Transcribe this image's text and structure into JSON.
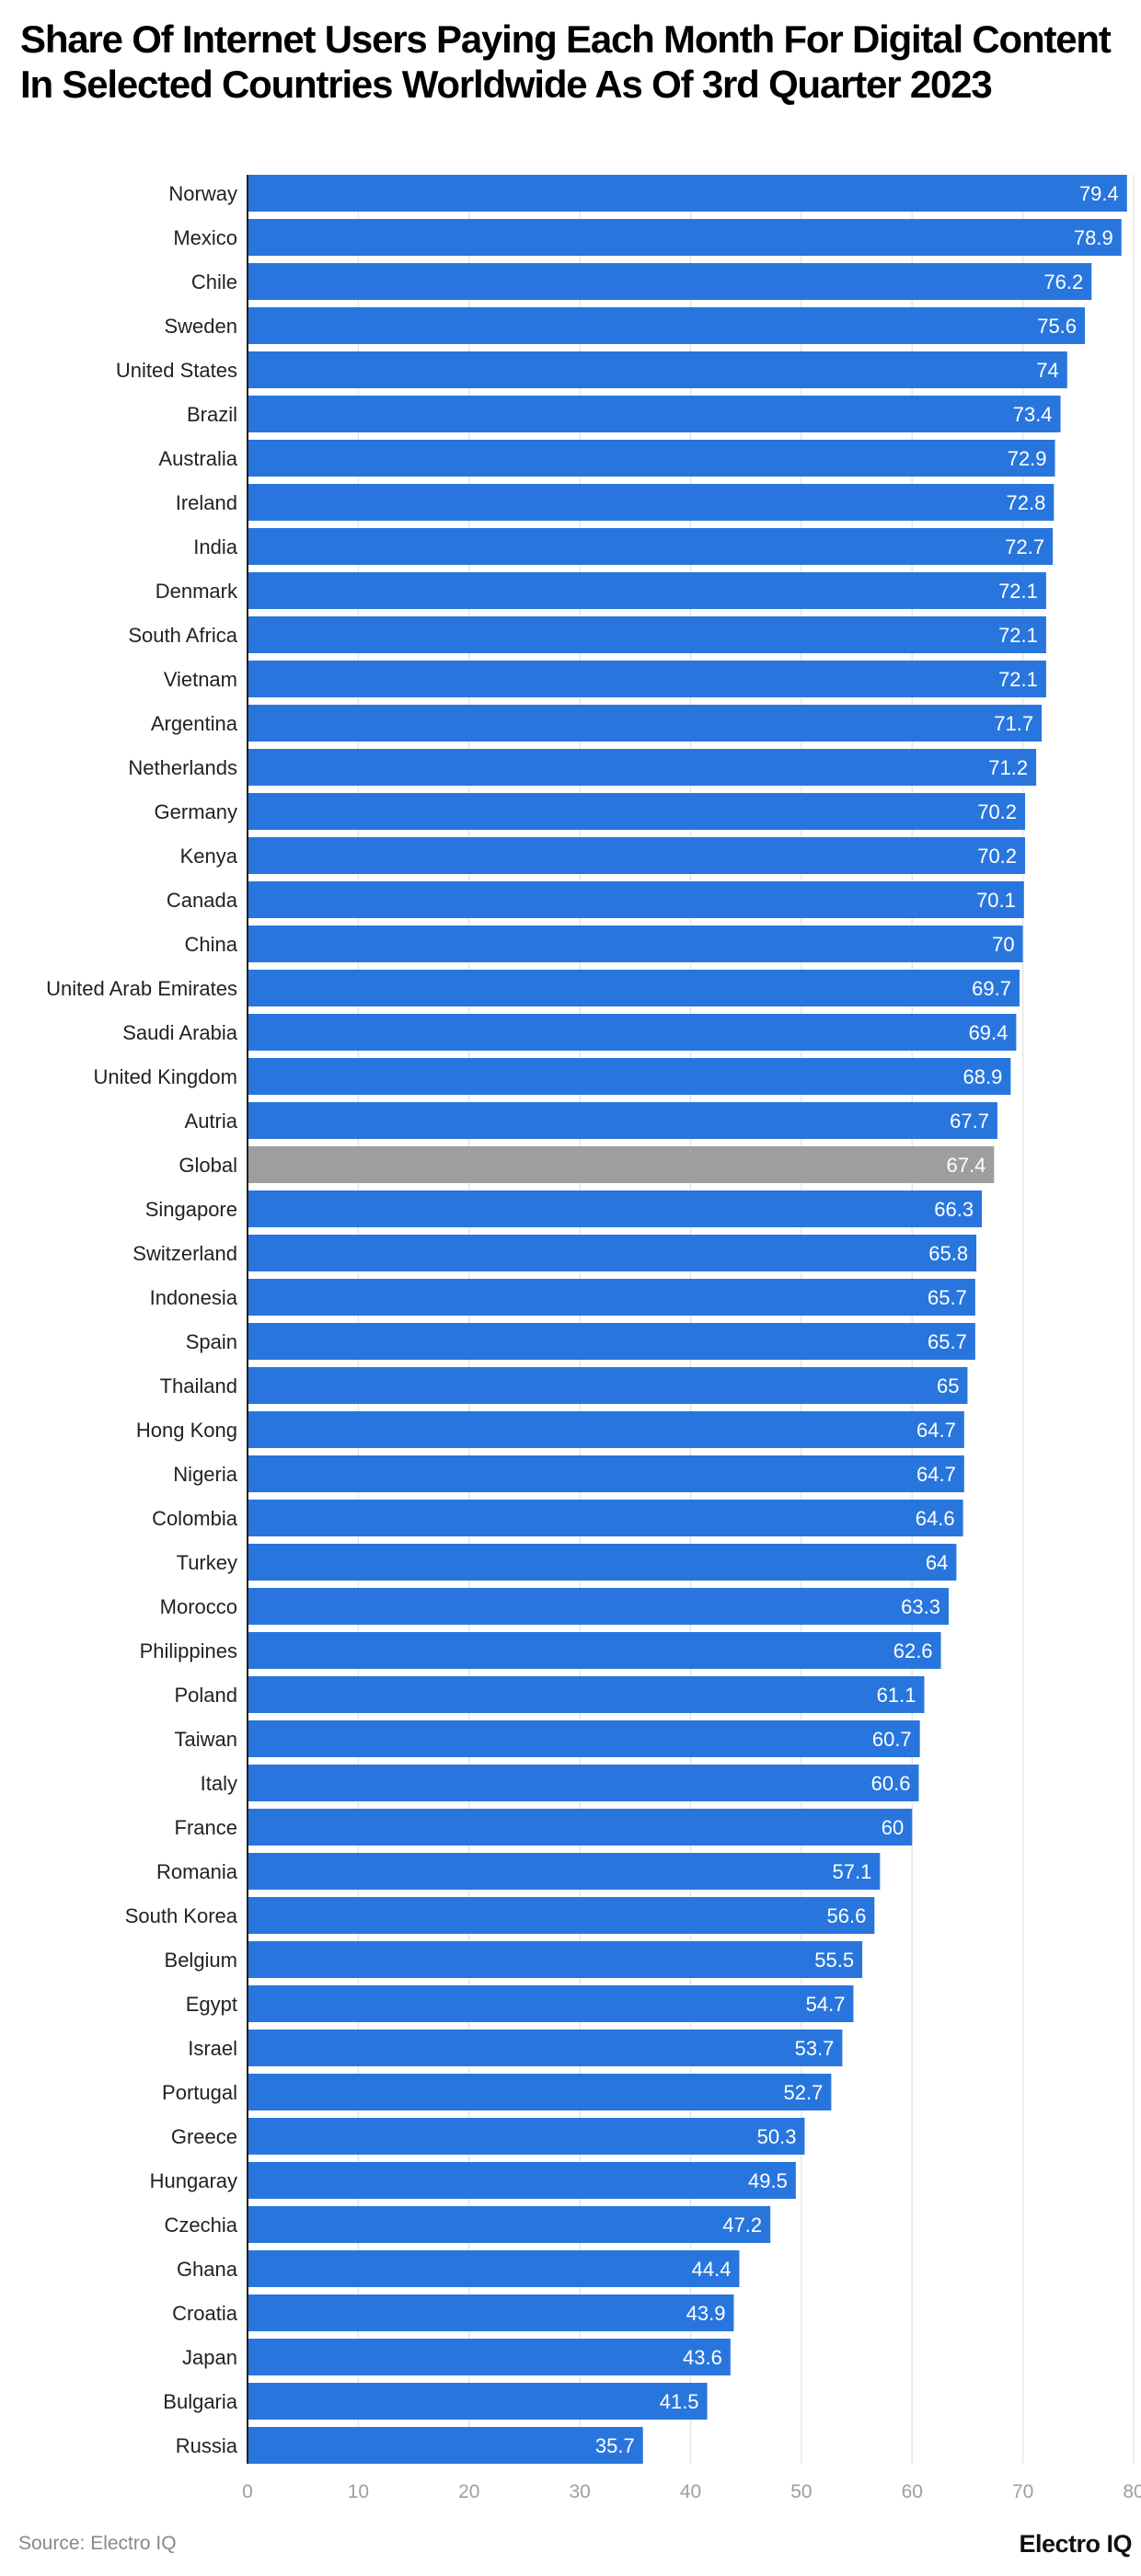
{
  "chart_data": {
    "type": "bar",
    "orientation": "horizontal",
    "title": "Share Of Internet Users Paying Each Month For Digital Content In Selected Countries Worldwide As Of 3rd Quarter 2023",
    "categories": [
      "Norway",
      "Mexico",
      "Chile",
      "Sweden",
      "United States",
      "Brazil",
      "Australia",
      "Ireland",
      "India",
      "Denmark",
      "South Africa",
      "Vietnam",
      "Argentina",
      "Netherlands",
      "Germany",
      "Kenya",
      "Canada",
      "China",
      "United Arab Emirates",
      "Saudi Arabia",
      "United Kingdom",
      "Autria",
      "Global",
      "Singapore",
      "Switzerland",
      "Indonesia",
      "Spain",
      "Thailand",
      "Hong Kong",
      "Nigeria",
      "Colombia",
      "Turkey",
      "Morocco",
      "Philippines",
      "Poland",
      "Taiwan",
      "Italy",
      "France",
      "Romania",
      "South Korea",
      "Belgium",
      "Egypt",
      "Israel",
      "Portugal",
      "Greece",
      "Hungaray",
      "Czechia",
      "Ghana",
      "Croatia",
      "Japan",
      "Bulgaria",
      "Russia"
    ],
    "values": [
      79.4,
      78.9,
      76.2,
      75.6,
      74,
      73.4,
      72.9,
      72.8,
      72.7,
      72.1,
      72.1,
      72.1,
      71.7,
      71.2,
      70.2,
      70.2,
      70.1,
      70,
      69.7,
      69.4,
      68.9,
      67.7,
      67.4,
      66.3,
      65.8,
      65.7,
      65.7,
      65,
      64.7,
      64.7,
      64.6,
      64,
      63.3,
      62.6,
      61.1,
      60.7,
      60.6,
      60,
      57.1,
      56.6,
      55.5,
      54.7,
      53.7,
      52.7,
      50.3,
      49.5,
      47.2,
      44.4,
      43.9,
      43.6,
      41.5,
      35.7
    ],
    "highlight_category": "Global",
    "xlim": [
      0,
      80
    ],
    "xticks": [
      0,
      10,
      20,
      30,
      40,
      50,
      60,
      70,
      80
    ],
    "xlabel": "",
    "ylabel": "",
    "grid": "vertical",
    "colors": {
      "bar": "#2876DD",
      "highlight": "#9E9E9E",
      "grid": "#E6E6E6",
      "tick": "#9AA0A6"
    }
  },
  "footer": {
    "source": "Source: Electro IQ",
    "brand": "Electro IQ"
  }
}
